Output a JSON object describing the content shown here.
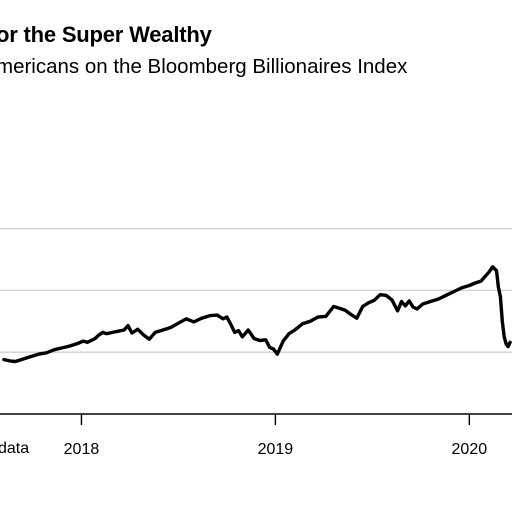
{
  "header": {
    "title": "or the Super Wealthy",
    "subtitle": "mericans on the Bloomberg Billionaires Index"
  },
  "footer": {
    "source": "data"
  },
  "colors": {
    "line": "#000000",
    "grid": "#d0d0d0",
    "axis": "#000000"
  },
  "chart_data": {
    "type": "line",
    "title": "or the Super Wealthy",
    "subtitle": "mericans on the Bloomberg Billionaires Index",
    "xlabel": "",
    "ylabel": "",
    "x_ticks": [
      "2018",
      "2019",
      "2020"
    ],
    "x_range": [
      2017.58,
      2020.22
    ],
    "y_range": [
      0,
      1
    ],
    "y_grid_levels": [
      0.2,
      0.4,
      0.6
    ],
    "grid": true,
    "series": [
      {
        "x": [
          2017.6,
          2017.63,
          2017.66,
          2017.7,
          2017.74,
          2017.78,
          2017.82,
          2017.86,
          2017.9,
          2017.94,
          2017.98,
          2018.01,
          2018.03,
          2018.05,
          2018.07,
          2018.09,
          2018.11,
          2018.13,
          2018.16,
          2018.19,
          2018.22,
          2018.24,
          2018.26,
          2018.29,
          2018.32,
          2018.35,
          2018.38,
          2018.42,
          2018.46,
          2018.5,
          2018.54,
          2018.58,
          2018.62,
          2018.66,
          2018.7,
          2018.73,
          2018.75,
          2018.77,
          2018.79,
          2018.81,
          2018.83,
          2018.86,
          2018.89,
          2018.92,
          2018.95,
          2018.97,
          2018.99,
          2019.01,
          2019.04,
          2019.07,
          2019.1,
          2019.14,
          2019.18,
          2019.22,
          2019.26,
          2019.3,
          2019.33,
          2019.36,
          2019.39,
          2019.42,
          2019.45,
          2019.48,
          2019.51,
          2019.54,
          2019.57,
          2019.6,
          2019.63,
          2019.65,
          2019.67,
          2019.69,
          2019.71,
          2019.73,
          2019.76,
          2019.8,
          2019.84,
          2019.88,
          2019.92,
          2019.96,
          2020.0,
          2020.03,
          2020.06,
          2020.08,
          2020.1,
          2020.12,
          2020.14,
          2020.15,
          2020.16,
          2020.17,
          2020.18,
          2020.19,
          2020.2,
          2020.21
        ],
        "y": [
          0.176,
          0.172,
          0.17,
          0.178,
          0.186,
          0.194,
          0.198,
          0.208,
          0.214,
          0.22,
          0.228,
          0.236,
          0.232,
          0.238,
          0.244,
          0.256,
          0.264,
          0.26,
          0.264,
          0.268,
          0.272,
          0.286,
          0.262,
          0.274,
          0.256,
          0.242,
          0.264,
          0.272,
          0.28,
          0.294,
          0.308,
          0.298,
          0.31,
          0.318,
          0.32,
          0.308,
          0.314,
          0.29,
          0.264,
          0.27,
          0.25,
          0.272,
          0.244,
          0.238,
          0.24,
          0.216,
          0.21,
          0.194,
          0.236,
          0.26,
          0.272,
          0.292,
          0.3,
          0.314,
          0.316,
          0.348,
          0.342,
          0.336,
          0.322,
          0.31,
          0.348,
          0.36,
          0.368,
          0.386,
          0.384,
          0.37,
          0.334,
          0.364,
          0.35,
          0.366,
          0.346,
          0.34,
          0.356,
          0.364,
          0.372,
          0.384,
          0.396,
          0.408,
          0.416,
          0.424,
          0.43,
          0.444,
          0.458,
          0.476,
          0.464,
          0.41,
          0.38,
          0.3,
          0.25,
          0.226,
          0.218,
          0.232
        ]
      }
    ]
  }
}
